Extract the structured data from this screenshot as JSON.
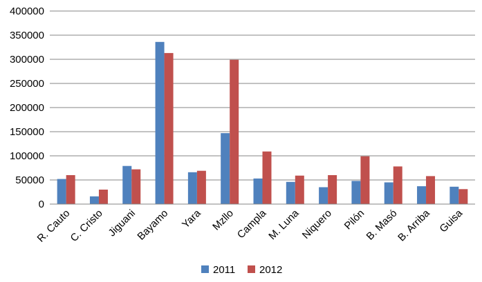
{
  "chart_data": {
    "type": "bar",
    "title": "",
    "xlabel": "",
    "ylabel": "",
    "categories": [
      "R. Cauto",
      "C. Cristo",
      "Jiguani",
      "Bayamo",
      "Yara",
      "Mzllo",
      "Campla",
      "M. Luna",
      "Niquero",
      "Pilón",
      "B. Masó",
      "B. Arriba",
      "Guisa"
    ],
    "series": [
      {
        "name": "2011",
        "color": "#4f81bd",
        "values": [
          52000,
          16000,
          79000,
          336000,
          66000,
          147000,
          53000,
          46000,
          35000,
          48000,
          45000,
          37000,
          36000
        ]
      },
      {
        "name": "2012",
        "color": "#c0504d",
        "values": [
          60000,
          30000,
          72000,
          313000,
          69000,
          299000,
          109000,
          59000,
          60000,
          99000,
          78000,
          58000,
          31000
        ]
      }
    ],
    "ylim": [
      0,
      400000
    ],
    "yticks": [
      "0",
      "50000",
      "100000",
      "150000",
      "200000",
      "250000",
      "300000",
      "350000",
      "400000"
    ],
    "grid": true,
    "legend_position": "bottom"
  }
}
